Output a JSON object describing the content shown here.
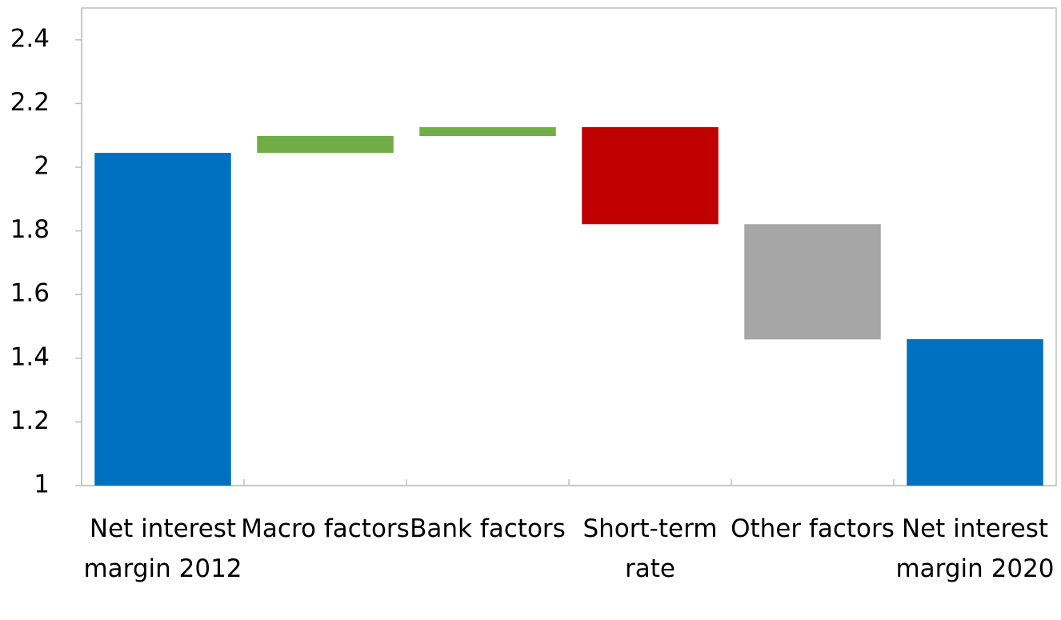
{
  "chart_data": {
    "type": "waterfall",
    "categories": [
      "Net interest margin 2012",
      "Macro factors",
      "Bank factors",
      "Short-term rate",
      "Other factors",
      "Net interest margin 2020"
    ],
    "values": [
      2.045,
      0.053,
      0.028,
      -0.305,
      -0.362,
      1.46
    ],
    "measure": [
      "absolute",
      "relative",
      "relative",
      "relative",
      "relative",
      "absolute"
    ],
    "colors": [
      "#0070c0",
      "#70ad47",
      "#70ad47",
      "#c00000",
      "#a6a6a6",
      "#0070c0"
    ],
    "ylim": [
      1,
      2.5
    ],
    "yticks": [
      1,
      1.2,
      1.4,
      1.6,
      1.8,
      2,
      2.2,
      2.4
    ],
    "grid": false
  }
}
